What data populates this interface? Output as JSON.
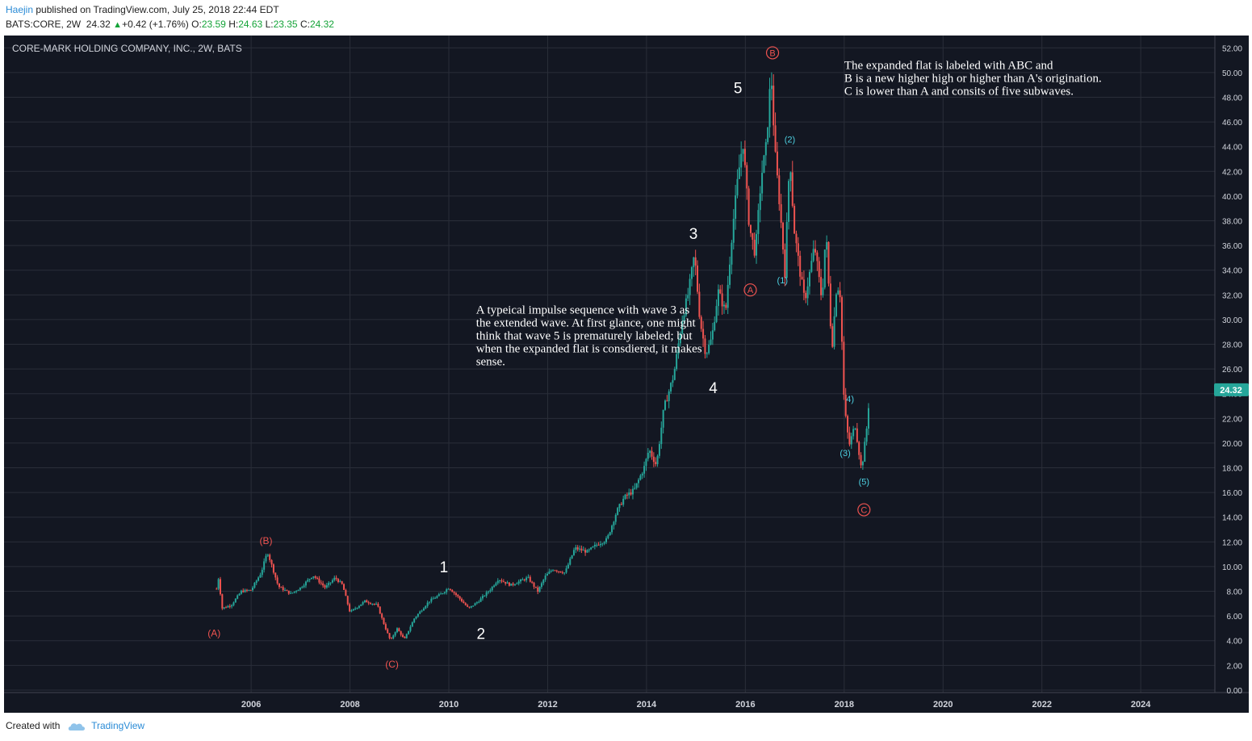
{
  "header": {
    "author": "Haejin",
    "published_text": " published on TradingView.com, July 25, 2018 22:44 EDT",
    "symbol": "BATS:CORE, 2W",
    "last": "24.32",
    "change": "+0.42 (+1.76%)",
    "o_label": "O:",
    "o_value": "23.59",
    "h_label": "H:",
    "h_value": "24.63",
    "l_label": "L:",
    "l_value": "23.35",
    "c_label": "C:",
    "c_value": "24.32"
  },
  "footer": {
    "created_with": "Created with",
    "brand": "TradingView"
  },
  "colors": {
    "background": "#131722",
    "grid": "#2a2e39",
    "up": "#26a69a",
    "down": "#ef5350",
    "last_badge": "#26a69a",
    "cyan": "#4dd0e1",
    "red_label": "#ef5350"
  },
  "chart_data": {
    "type": "candlestick",
    "title": "CORE-MARK HOLDING COMPANY, INC., 2W, BATS",
    "x_ticks": [
      2006,
      2008,
      2010,
      2012,
      2014,
      2016,
      2018,
      2020,
      2022,
      2024
    ],
    "x_tick_labels": [
      "2006",
      "2008",
      "2010",
      "2012",
      "2014",
      "2016",
      "2018",
      "2020",
      "2022",
      "2024"
    ],
    "y_ticks": [
      "0.00",
      "2.00",
      "4.00",
      "6.00",
      "8.00",
      "10.00",
      "12.00",
      "14.00",
      "16.00",
      "18.00",
      "20.00",
      "22.00",
      "24.00",
      "26.00",
      "28.00",
      "30.00",
      "32.00",
      "34.00",
      "36.00",
      "38.00",
      "40.00",
      "42.00",
      "44.00",
      "46.00",
      "48.00",
      "50.00",
      "52.00"
    ],
    "xlim": [
      2001.0,
      2025.5
    ],
    "ylim": [
      -0.2,
      53.0
    ],
    "last_price": "24.32",
    "price_path": [
      [
        2005.3,
        8.2
      ],
      [
        2005.35,
        9.3
      ],
      [
        2005.4,
        6.6
      ],
      [
        2005.6,
        6.9
      ],
      [
        2005.8,
        8.0
      ],
      [
        2006.0,
        8.1
      ],
      [
        2006.2,
        9.5
      ],
      [
        2006.33,
        11.2
      ],
      [
        2006.55,
        8.4
      ],
      [
        2006.8,
        7.8
      ],
      [
        2007.0,
        8.3
      ],
      [
        2007.25,
        9.3
      ],
      [
        2007.5,
        8.3
      ],
      [
        2007.7,
        9.1
      ],
      [
        2007.85,
        8.5
      ],
      [
        2008.0,
        6.3
      ],
      [
        2008.3,
        7.2
      ],
      [
        2008.55,
        6.9
      ],
      [
        2008.7,
        5.2
      ],
      [
        2008.82,
        4.0
      ],
      [
        2008.95,
        5.0
      ],
      [
        2009.1,
        4.1
      ],
      [
        2009.3,
        5.8
      ],
      [
        2009.6,
        7.2
      ],
      [
        2009.85,
        7.8
      ],
      [
        2010.0,
        8.3
      ],
      [
        2010.2,
        7.5
      ],
      [
        2010.4,
        6.6
      ],
      [
        2010.6,
        7.2
      ],
      [
        2010.85,
        8.2
      ],
      [
        2011.0,
        9.0
      ],
      [
        2011.25,
        8.5
      ],
      [
        2011.6,
        9.1
      ],
      [
        2011.8,
        8.0
      ],
      [
        2011.95,
        9.2
      ],
      [
        2012.1,
        9.8
      ],
      [
        2012.35,
        9.5
      ],
      [
        2012.55,
        11.5
      ],
      [
        2012.8,
        11.2
      ],
      [
        2013.0,
        11.8
      ],
      [
        2013.2,
        12.2
      ],
      [
        2013.4,
        14.5
      ],
      [
        2013.55,
        15.6
      ],
      [
        2013.75,
        16.2
      ],
      [
        2013.95,
        18.0
      ],
      [
        2014.05,
        19.5
      ],
      [
        2014.2,
        18.2
      ],
      [
        2014.35,
        22.8
      ],
      [
        2014.55,
        25.5
      ],
      [
        2014.72,
        30.0
      ],
      [
        2014.85,
        32.2
      ],
      [
        2014.97,
        35.3
      ],
      [
        2015.08,
        30.0
      ],
      [
        2015.2,
        27.2
      ],
      [
        2015.32,
        28.5
      ],
      [
        2015.45,
        32.3
      ],
      [
        2015.6,
        30.6
      ],
      [
        2015.73,
        37.0
      ],
      [
        2015.85,
        41.5
      ],
      [
        2015.95,
        44.5
      ],
      [
        2016.08,
        37.5
      ],
      [
        2016.2,
        35.3
      ],
      [
        2016.32,
        41.5
      ],
      [
        2016.42,
        44.0
      ],
      [
        2016.52,
        50.0
      ],
      [
        2016.6,
        43.5
      ],
      [
        2016.7,
        39.0
      ],
      [
        2016.8,
        33.8
      ],
      [
        2016.9,
        43.5
      ],
      [
        2016.98,
        37.5
      ],
      [
        2017.1,
        34.0
      ],
      [
        2017.2,
        31.5
      ],
      [
        2017.4,
        36.0
      ],
      [
        2017.55,
        31.5
      ],
      [
        2017.63,
        37.3
      ],
      [
        2017.75,
        27.5
      ],
      [
        2017.85,
        33.0
      ],
      [
        2017.92,
        32.0
      ],
      [
        2018.0,
        23.0
      ],
      [
        2018.1,
        19.8
      ],
      [
        2018.22,
        21.5
      ],
      [
        2018.35,
        17.8
      ],
      [
        2018.45,
        21.0
      ],
      [
        2018.52,
        24.32
      ]
    ],
    "wave_labels": [
      {
        "text": "(A)",
        "x": 2005.25,
        "y": 4.6,
        "style": "red"
      },
      {
        "text": "(B)",
        "x": 2006.3,
        "y": 12.1,
        "style": "red"
      },
      {
        "text": "(C)",
        "x": 2008.85,
        "y": 2.1,
        "style": "red"
      },
      {
        "text": "1",
        "x": 2009.9,
        "y": 10.0,
        "style": "white"
      },
      {
        "text": "2",
        "x": 2010.65,
        "y": 4.6,
        "style": "white"
      },
      {
        "text": "3",
        "x": 2014.95,
        "y": 37.0,
        "style": "white"
      },
      {
        "text": "4",
        "x": 2015.35,
        "y": 24.5,
        "style": "white"
      },
      {
        "text": "5",
        "x": 2015.85,
        "y": 48.8,
        "style": "white"
      },
      {
        "text": "A",
        "x": 2016.1,
        "y": 32.4,
        "style": "red-circle"
      },
      {
        "text": "B",
        "x": 2016.55,
        "y": 51.6,
        "style": "red-circle"
      },
      {
        "text": "C",
        "x": 2018.4,
        "y": 14.6,
        "style": "red-circle"
      },
      {
        "text": "(1)",
        "x": 2016.75,
        "y": 33.2,
        "style": "cyan"
      },
      {
        "text": "(2)",
        "x": 2016.9,
        "y": 44.6,
        "style": "cyan"
      },
      {
        "text": "(3)",
        "x": 2018.02,
        "y": 19.2,
        "style": "cyan"
      },
      {
        "text": "4)",
        "x": 2018.12,
        "y": 23.6,
        "style": "cyan"
      },
      {
        "text": "(5)",
        "x": 2018.4,
        "y": 16.9,
        "style": "cyan"
      }
    ],
    "annotations": [
      {
        "lines": [
          "A typeical impulse sequence with wave 3 as",
          "the extended wave. At first glance, one might",
          "think that wave 5 is prematurely labeled; but",
          "when the expanded flat is consdiered, it makes",
          "sense."
        ],
        "x": 2010.55,
        "y": 30.5
      },
      {
        "lines": [
          "The expanded flat is labeled with ABC and",
          "B is a new higher high or higher than A's origination.",
          "C is lower than A and consits of five subwaves."
        ],
        "x": 2018.0,
        "y": 50.3
      }
    ]
  }
}
